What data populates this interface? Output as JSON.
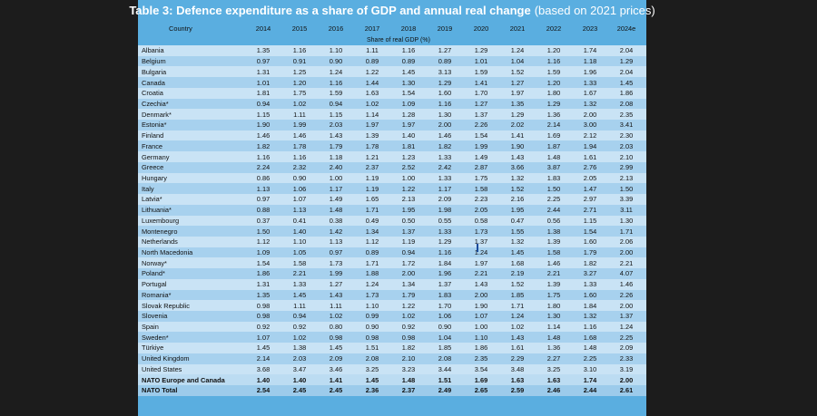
{
  "title": {
    "main": "Table 3: Defence expenditure as a share of GDP and annual real change",
    "suffix": "(based on 2021 prices)"
  },
  "header": {
    "country_label": "Country",
    "years": [
      "2014",
      "2015",
      "2016",
      "2017",
      "2018",
      "2019",
      "2020",
      "2021",
      "2022",
      "2023",
      "2024e"
    ],
    "sub_label": "Share of real GDP (%)"
  },
  "rows": [
    {
      "country": "Albania",
      "values": [
        "1.35",
        "1.16",
        "1.10",
        "1.11",
        "1.16",
        "1.27",
        "1.29",
        "1.24",
        "1.20",
        "1.74",
        "2.04"
      ]
    },
    {
      "country": "Belgium",
      "values": [
        "0.97",
        "0.91",
        "0.90",
        "0.89",
        "0.89",
        "0.89",
        "1.01",
        "1.04",
        "1.16",
        "1.18",
        "1.29"
      ]
    },
    {
      "country": "Bulgaria",
      "values": [
        "1.31",
        "1.25",
        "1.24",
        "1.22",
        "1.45",
        "3.13",
        "1.59",
        "1.52",
        "1.59",
        "1.96",
        "2.04"
      ]
    },
    {
      "country": "Canada",
      "values": [
        "1.01",
        "1.20",
        "1.16",
        "1.44",
        "1.30",
        "1.29",
        "1.41",
        "1.27",
        "1.20",
        "1.33",
        "1.45"
      ]
    },
    {
      "country": "Croatia",
      "values": [
        "1.81",
        "1.75",
        "1.59",
        "1.63",
        "1.54",
        "1.60",
        "1.70",
        "1.97",
        "1.80",
        "1.67",
        "1.86"
      ]
    },
    {
      "country": "Czechia*",
      "values": [
        "0.94",
        "1.02",
        "0.94",
        "1.02",
        "1.09",
        "1.16",
        "1.27",
        "1.35",
        "1.29",
        "1.32",
        "2.08"
      ]
    },
    {
      "country": "Denmark*",
      "values": [
        "1.15",
        "1.11",
        "1.15",
        "1.14",
        "1.28",
        "1.30",
        "1.37",
        "1.29",
        "1.36",
        "2.00",
        "2.35"
      ]
    },
    {
      "country": "Estonia*",
      "values": [
        "1.90",
        "1.99",
        "2.03",
        "1.97",
        "1.97",
        "2.00",
        "2.26",
        "2.02",
        "2.14",
        "3.00",
        "3.41"
      ]
    },
    {
      "country": "Finland",
      "values": [
        "1.46",
        "1.46",
        "1.43",
        "1.39",
        "1.40",
        "1.46",
        "1.54",
        "1.41",
        "1.69",
        "2.12",
        "2.30"
      ]
    },
    {
      "country": "France",
      "values": [
        "1.82",
        "1.78",
        "1.79",
        "1.78",
        "1.81",
        "1.82",
        "1.99",
        "1.90",
        "1.87",
        "1.94",
        "2.03"
      ]
    },
    {
      "country": "Germany",
      "values": [
        "1.16",
        "1.16",
        "1.18",
        "1.21",
        "1.23",
        "1.33",
        "1.49",
        "1.43",
        "1.48",
        "1.61",
        "2.10"
      ]
    },
    {
      "country": "Greece",
      "values": [
        "2.24",
        "2.32",
        "2.40",
        "2.37",
        "2.52",
        "2.42",
        "2.87",
        "3.66",
        "3.87",
        "2.76",
        "2.99"
      ]
    },
    {
      "country": "Hungary",
      "values": [
        "0.86",
        "0.90",
        "1.00",
        "1.19",
        "1.00",
        "1.33",
        "1.75",
        "1.32",
        "1.83",
        "2.05",
        "2.13"
      ]
    },
    {
      "country": "Italy",
      "values": [
        "1.13",
        "1.06",
        "1.17",
        "1.19",
        "1.22",
        "1.17",
        "1.58",
        "1.52",
        "1.50",
        "1.47",
        "1.50"
      ]
    },
    {
      "country": "Latvia*",
      "values": [
        "0.97",
        "1.07",
        "1.49",
        "1.65",
        "2.13",
        "2.09",
        "2.23",
        "2.16",
        "2.25",
        "2.97",
        "3.39"
      ]
    },
    {
      "country": "Lithuania*",
      "values": [
        "0.88",
        "1.13",
        "1.48",
        "1.71",
        "1.95",
        "1.98",
        "2.05",
        "1.95",
        "2.44",
        "2.71",
        "3.11"
      ]
    },
    {
      "country": "Luxembourg",
      "values": [
        "0.37",
        "0.41",
        "0.38",
        "0.49",
        "0.50",
        "0.55",
        "0.58",
        "0.47",
        "0.56",
        "1.15",
        "1.30"
      ]
    },
    {
      "country": "Montenegro",
      "values": [
        "1.50",
        "1.40",
        "1.42",
        "1.34",
        "1.37",
        "1.33",
        "1.73",
        "1.55",
        "1.38",
        "1.54",
        "1.71"
      ]
    },
    {
      "country": "Netherlands",
      "values": [
        "1.12",
        "1.10",
        "1.13",
        "1.12",
        "1.19",
        "1.29",
        "1.37",
        "1.32",
        "1.39",
        "1.60",
        "2.06"
      ]
    },
    {
      "country": "North Macedonia",
      "values": [
        "1.09",
        "1.05",
        "0.97",
        "0.89",
        "0.94",
        "1.16",
        "1.24",
        "1.45",
        "1.58",
        "1.79",
        "2.00"
      ]
    },
    {
      "country": "Norway*",
      "values": [
        "1.54",
        "1.58",
        "1.73",
        "1.71",
        "1.72",
        "1.84",
        "1.97",
        "1.68",
        "1.46",
        "1.82",
        "2.21"
      ]
    },
    {
      "country": "Poland*",
      "values": [
        "1.86",
        "2.21",
        "1.99",
        "1.88",
        "2.00",
        "1.96",
        "2.21",
        "2.19",
        "2.21",
        "3.27",
        "4.07"
      ]
    },
    {
      "country": "Portugal",
      "values": [
        "1.31",
        "1.33",
        "1.27",
        "1.24",
        "1.34",
        "1.37",
        "1.43",
        "1.52",
        "1.39",
        "1.33",
        "1.46"
      ]
    },
    {
      "country": "Romania*",
      "values": [
        "1.35",
        "1.45",
        "1.43",
        "1.73",
        "1.79",
        "1.83",
        "2.00",
        "1.85",
        "1.75",
        "1.60",
        "2.26"
      ]
    },
    {
      "country": "Slovak Republic",
      "values": [
        "0.98",
        "1.11",
        "1.11",
        "1.10",
        "1.22",
        "1.70",
        "1.90",
        "1.71",
        "1.80",
        "1.84",
        "2.00"
      ]
    },
    {
      "country": "Slovenia",
      "values": [
        "0.98",
        "0.94",
        "1.02",
        "0.99",
        "1.02",
        "1.06",
        "1.07",
        "1.24",
        "1.30",
        "1.32",
        "1.37"
      ]
    },
    {
      "country": "Spain",
      "values": [
        "0.92",
        "0.92",
        "0.80",
        "0.90",
        "0.92",
        "0.90",
        "1.00",
        "1.02",
        "1.14",
        "1.16",
        "1.24"
      ]
    },
    {
      "country": "Sweden*",
      "values": [
        "1.07",
        "1.02",
        "0.98",
        "0.98",
        "0.98",
        "1.04",
        "1.10",
        "1.43",
        "1.48",
        "1.68",
        "2.25"
      ]
    },
    {
      "country": "Türkiye",
      "values": [
        "1.45",
        "1.38",
        "1.45",
        "1.51",
        "1.82",
        "1.85",
        "1.86",
        "1.61",
        "1.36",
        "1.48",
        "2.09"
      ]
    },
    {
      "country": "United Kingdom",
      "values": [
        "2.14",
        "2.03",
        "2.09",
        "2.08",
        "2.10",
        "2.08",
        "2.35",
        "2.29",
        "2.27",
        "2.25",
        "2.33"
      ]
    },
    {
      "country": "United States",
      "values": [
        "3.68",
        "3.47",
        "3.46",
        "3.25",
        "3.23",
        "3.44",
        "3.54",
        "3.48",
        "3.25",
        "3.10",
        "3.19"
      ]
    }
  ],
  "totals": [
    {
      "country": "NATO Europe and Canada",
      "values": [
        "1.40",
        "1.40",
        "1.41",
        "1.45",
        "1.48",
        "1.51",
        "1.69",
        "1.63",
        "1.63",
        "1.74",
        "2.00"
      ]
    },
    {
      "country": "NATO Total",
      "values": [
        "2.54",
        "2.45",
        "2.45",
        "2.36",
        "2.37",
        "2.49",
        "2.65",
        "2.59",
        "2.46",
        "2.44",
        "2.61"
      ]
    }
  ],
  "colors": {
    "panel": "#5aaee0",
    "row_light": "#c9e3f5",
    "row_dark": "#a7d1ee",
    "page_bg": "#1c1c1c"
  }
}
